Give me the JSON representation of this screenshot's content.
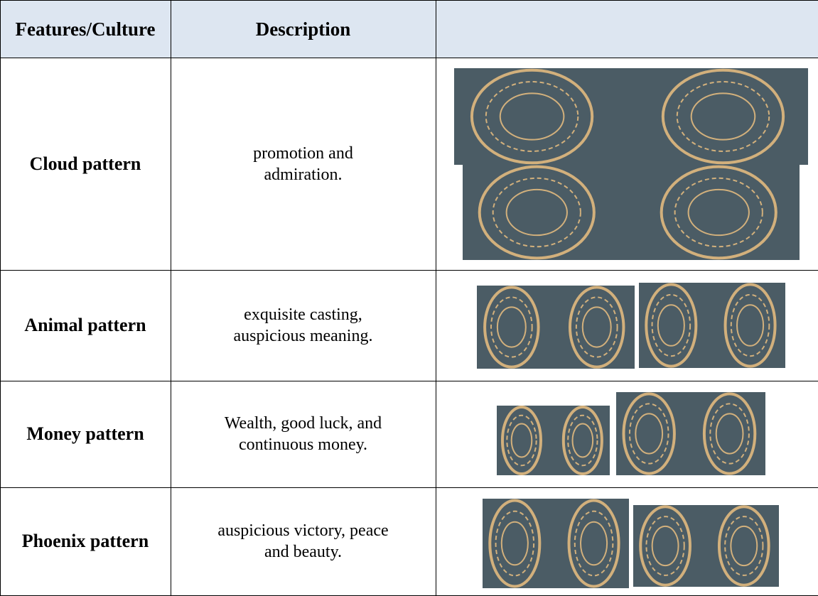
{
  "table": {
    "header": [
      "Features/Culture",
      "Description"
    ],
    "rows": [
      [
        "Cloud pattern",
        "promotion and admiration."
      ],
      [
        "Animal pattern",
        "exquisite casting, auspicious meaning."
      ],
      [
        "Money pattern",
        "Wealth, good luck, and continuous money."
      ],
      [
        "Phoenix pattern",
        "auspicious victory, peace and beauty."
      ]
    ]
  }
}
